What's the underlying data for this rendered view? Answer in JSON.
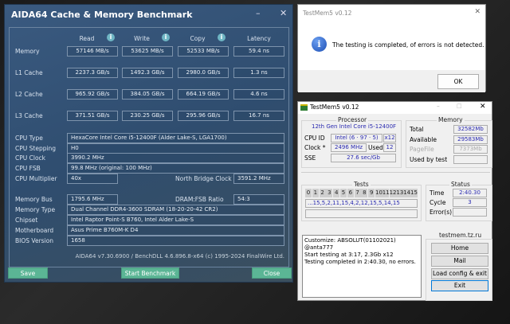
{
  "aida": {
    "title": "AIDA64 Cache & Memory Benchmark",
    "minimize": "–",
    "close": "✕",
    "columns": [
      "Read",
      "Write",
      "Copy",
      "Latency"
    ],
    "bench_rows": [
      {
        "label": "Memory",
        "values": [
          "57146 MB/s",
          "53625 MB/s",
          "52533 MB/s",
          "59.4 ns"
        ]
      },
      {
        "label": "L1 Cache",
        "values": [
          "2237.3 GB/s",
          "1492.3 GB/s",
          "2980.0 GB/s",
          "1.3 ns"
        ]
      },
      {
        "label": "L2 Cache",
        "values": [
          "965.92 GB/s",
          "384.05 GB/s",
          "664.19 GB/s",
          "4.6 ns"
        ]
      },
      {
        "label": "L3 Cache",
        "values": [
          "371.51 GB/s",
          "230.25 GB/s",
          "295.96 GB/s",
          "16.7 ns"
        ]
      }
    ],
    "cpu_type_label": "CPU Type",
    "cpu_type": "HexaCore Intel Core i5-12400F  (Alder Lake-S, LGA1700)",
    "cpu_stepping_label": "CPU Stepping",
    "cpu_stepping": "H0",
    "cpu_clock_label": "CPU Clock",
    "cpu_clock": "3990.2 MHz",
    "cpu_fsb_label": "CPU FSB",
    "cpu_fsb": "99.8 MHz  (original: 100 MHz)",
    "cpu_mult_label": "CPU Multiplier",
    "cpu_mult": "40x",
    "nb_clock_label": "North Bridge Clock",
    "nb_clock": "3591.2 MHz",
    "mem_bus_label": "Memory Bus",
    "mem_bus": "1795.6 MHz",
    "dram_ratio_label": "DRAM:FSB Ratio",
    "dram_ratio": "54:3",
    "mem_type_label": "Memory Type",
    "mem_type": "Dual Channel DDR4-3600 SDRAM  (18-20-20-42 CR2)",
    "chipset_label": "Chipset",
    "chipset": "Intel Raptor Point-S B760, Intel Alder Lake-S",
    "mobo_label": "Motherboard",
    "mobo": "Asus Prime B760M-K D4",
    "bios_label": "BIOS Version",
    "bios": "1658",
    "footer": "AIDA64 v7.30.6900 / BenchDLL 4.6.896.8-x64  (c) 1995-2024 FinalWire Ltd.",
    "save": "Save",
    "start": "Start Benchmark",
    "close_btn": "Close"
  },
  "dialog": {
    "title": "TestMem5 v0.12",
    "close": "✕",
    "message": "The testing is completed, of errors is not detected.",
    "ok": "OK"
  },
  "tm5": {
    "title": "TestMem5 v0.12",
    "processor_title": "Processor",
    "cpu_name": "12th Gen Intel Core i5-12400F",
    "cpuid_label": "CPU ID",
    "cpuid": "Intel  (6 · 97 · 5)",
    "threads": "x12",
    "clock_label": "Clock *",
    "clock": "2496 MHz",
    "used_label": "Used",
    "used": "12",
    "sse_label": "SSE",
    "sse": "27.6 sec/Gb",
    "memory_title": "Memory",
    "total_label": "Total",
    "total": "32582Mb",
    "avail_label": "Available",
    "avail": "29583Mb",
    "pagefile_label": "PageFile",
    "pagefile": "7373Mb",
    "usedby_label": "Used by test",
    "usedby": "",
    "tests_title": "Tests",
    "tests": [
      "0",
      "1",
      "2",
      "3",
      "4",
      "5",
      "6",
      "7",
      "8",
      "9",
      "10",
      "11",
      "12",
      "13",
      "14",
      "15"
    ],
    "sequence": "...15,5,2,11,15,4,2,12,15,5,14,15",
    "status_title": "Status",
    "time_label": "Time",
    "time": "2:40.30",
    "cycle_label": "Cycle",
    "cycle": "3",
    "errors_label": "Error(s)",
    "errors": "",
    "log": [
      "Customize: ABSOLUT(01102021) @anta777",
      "Start testing at 3:17, 2.3Gb x12",
      "Testing completed in 2:40.30, no errors."
    ],
    "site_title": "testmem.tz.ru",
    "home": "Home",
    "mail": "Mail",
    "load": "Load config & exit",
    "exit": "Exit"
  }
}
